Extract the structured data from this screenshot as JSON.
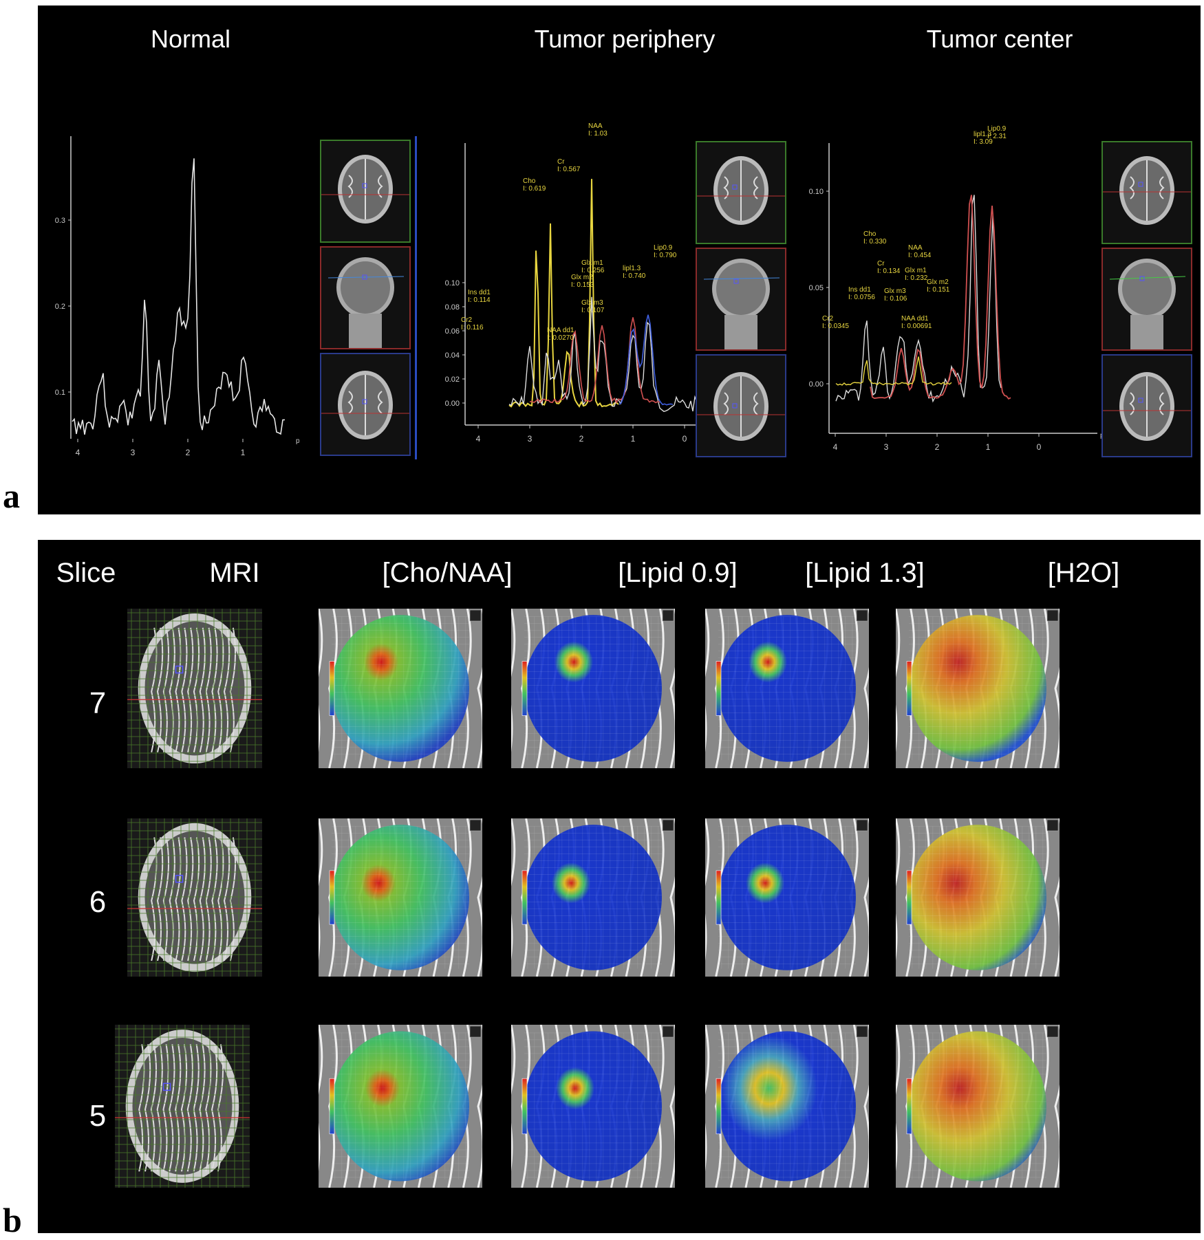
{
  "panel_a": {
    "letter": "a",
    "titles": [
      "Normal",
      "Tumor periphery",
      "Tumor center"
    ],
    "x_unit": "ppm",
    "x_ticks": [
      "4",
      "3",
      "2",
      "1",
      "0"
    ],
    "normal": {
      "x_ticks": [
        "4",
        "3",
        "2",
        "1"
      ],
      "y_ticks": [
        "0.1",
        "0.2",
        "0.3"
      ]
    },
    "periphery": {
      "y_ticks": [
        "0.00",
        "0.02",
        "0.04",
        "0.06",
        "0.08",
        "0.10"
      ],
      "peak_labels": [
        {
          "name": "NAA",
          "value": "I: 1.03"
        },
        {
          "name": "Cr",
          "value": "I: 0.567"
        },
        {
          "name": "Cho",
          "value": "I: 0.619"
        },
        {
          "name": "Glx m1",
          "value": "I: 0.256"
        },
        {
          "name": "Lip0.9",
          "value": "I: 0.790"
        },
        {
          "name": "lipl1.3",
          "value": "I: 0.740"
        },
        {
          "name": "Ins dd1",
          "value": "I: 0.114"
        },
        {
          "name": "Glx m2",
          "value": "I: 0.153"
        },
        {
          "name": "Glx m3",
          "value": "I: 0.107"
        },
        {
          "name": "NAA dd1",
          "value": "I: 0.0270"
        },
        {
          "name": "Cr2",
          "value": "I: 0.116"
        }
      ]
    },
    "center": {
      "y_ticks": [
        "0.00",
        "0.05",
        "0.10"
      ],
      "peak_labels": [
        {
          "name": "lipl1.3",
          "value": "I: 3.09"
        },
        {
          "name": "Lip0.9",
          "value": "I: 2.31"
        },
        {
          "name": "NAA",
          "value": "I: 0.454"
        },
        {
          "name": "Cho",
          "value": "I: 0.330"
        },
        {
          "name": "Cr",
          "value": "I: 0.134"
        },
        {
          "name": "Glx m1",
          "value": "I: 0.232"
        },
        {
          "name": "Ins dd1",
          "value": "I: 0.0756"
        },
        {
          "name": "Glx m3",
          "value": "I: 0.106"
        },
        {
          "name": "Glx m2",
          "value": "I: 0.151"
        },
        {
          "name": "NAA dd1",
          "value": "I: 0.00691"
        },
        {
          "name": "Cr2",
          "value": "I: 0.0345"
        }
      ]
    }
  },
  "panel_b": {
    "letter": "b",
    "column_headers": [
      "Slice",
      "MRI",
      "[Cho/NAA]",
      "[Lipid 0.9]",
      "[Lipid 1.3]",
      "[H2O]"
    ],
    "slices": [
      "7",
      "6",
      "5"
    ]
  },
  "colors": {
    "background": "#000000",
    "spectrum_gray": "#dddddd",
    "fit_yellow": "#e8d640",
    "fit_red": "#d05050",
    "fit_blue": "#4060e0",
    "frame_green": "#3a7a2a",
    "frame_red": "#8a2a2a",
    "frame_blue": "#2a3a8a"
  }
}
